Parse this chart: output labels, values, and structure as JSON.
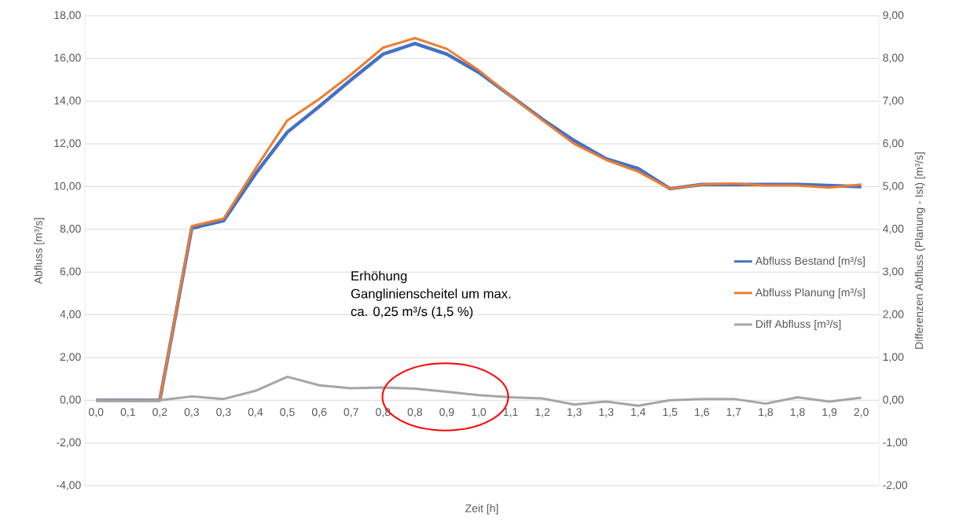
{
  "chart_data": {
    "type": "line",
    "xlabel": "Zeit [h]",
    "ylabel": "Abfluss [m³/s]",
    "y2label": "Differenzen Abfluss (Planung - Ist) [m³/s]",
    "categories": [
      "0,0",
      "0,1",
      "0,2",
      "0,3",
      "0,3",
      "0,4",
      "0,5",
      "0,6",
      "0,7",
      "0,8",
      "0,8",
      "0,9",
      "1,0",
      "1,1",
      "1,2",
      "1,3",
      "1,3",
      "1,4",
      "1,5",
      "1,6",
      "1,7",
      "1,8",
      "1,8",
      "1,9",
      "2,0"
    ],
    "series": [
      {
        "name": "Abfluss Bestand [m³/s]",
        "color": "#4472c4",
        "values": [
          0,
          0,
          0,
          8.05,
          8.4,
          10.6,
          12.55,
          13.75,
          15.0,
          16.2,
          16.7,
          16.2,
          15.35,
          14.25,
          13.15,
          12.15,
          11.3,
          10.85,
          9.9,
          10.1,
          10.1,
          10.1,
          10.1,
          10.05,
          10.0
        ]
      },
      {
        "name": "Abfluss Planung [m³/s]",
        "color": "#ed7d31",
        "values": [
          0,
          0,
          0,
          8.15,
          8.5,
          10.85,
          13.1,
          14.1,
          15.25,
          16.5,
          16.95,
          16.45,
          15.45,
          14.25,
          13.1,
          12.0,
          11.25,
          10.7,
          9.9,
          10.1,
          10.15,
          10.05,
          10.05,
          9.95,
          10.1
        ]
      },
      {
        "name": "Diff Abfluss [m³/s]",
        "color": "#a5a5a5",
        "axis": "y2",
        "values": [
          0,
          0,
          0,
          0.09,
          0.03,
          0.22,
          0.55,
          0.35,
          0.28,
          0.3,
          0.27,
          0.2,
          0.12,
          0.07,
          0.04,
          -0.1,
          -0.03,
          -0.13,
          0.0,
          0.03,
          0.03,
          -0.08,
          0.07,
          -0.03,
          0.06
        ]
      }
    ],
    "ylim": [
      -4,
      18
    ],
    "yticks": [
      {
        "value": -4,
        "label": "-4,00"
      },
      {
        "value": -2,
        "label": "-2,00"
      },
      {
        "value": 0,
        "label": "0,00"
      },
      {
        "value": 2,
        "label": "2,00"
      },
      {
        "value": 4,
        "label": "4,00"
      },
      {
        "value": 6,
        "label": "6,00"
      },
      {
        "value": 8,
        "label": "8,00"
      },
      {
        "value": 10,
        "label": "10,00"
      },
      {
        "value": 12,
        "label": "12,00"
      },
      {
        "value": 14,
        "label": "14,00"
      },
      {
        "value": 16,
        "label": "16,00"
      },
      {
        "value": 18,
        "label": "18,00"
      }
    ],
    "y2lim": [
      -2,
      9
    ],
    "y2ticks": [
      {
        "value": -2,
        "label": "-2,00"
      },
      {
        "value": -1,
        "label": "-1,00"
      },
      {
        "value": 0,
        "label": "0,00"
      },
      {
        "value": 1,
        "label": "1,00"
      },
      {
        "value": 2,
        "label": "2,00"
      },
      {
        "value": 3,
        "label": "3,00"
      },
      {
        "value": 4,
        "label": "4,00"
      },
      {
        "value": 5,
        "label": "5,00"
      },
      {
        "value": 6,
        "label": "6,00"
      },
      {
        "value": 7,
        "label": "7,00"
      },
      {
        "value": 8,
        "label": "8,00"
      },
      {
        "value": 9,
        "label": "9,00"
      }
    ],
    "annotations": [
      "Erhöhung",
      "Ganglinienscheitel um  max.",
      "ca. 0,25 m³/s (1,5 %)"
    ],
    "grid": "y",
    "legend": "right",
    "marker": "none",
    "line_style": "solid"
  }
}
